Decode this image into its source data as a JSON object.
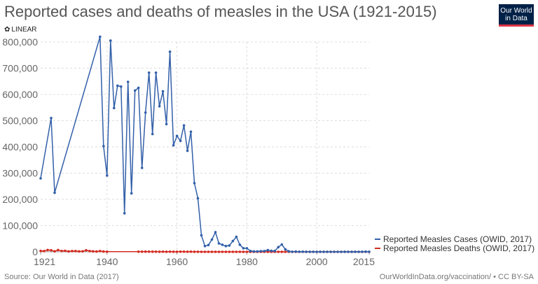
{
  "header": {
    "title": "Reported cases and deaths of measles in the USA (1921-2015)",
    "logo_line1": "Our World",
    "logo_line2": "in Data",
    "scale_label": "LINEAR"
  },
  "footer": {
    "source": "Source: Our World in Data (2017)",
    "link": "OurWorldInData.org/vaccination/ • CC BY-SA"
  },
  "colors": {
    "cases": "#3360a9",
    "deaths": "#d42b21",
    "grid": "#dddddd",
    "axis_text": "#666666"
  },
  "chart_data": {
    "type": "line",
    "title": "Reported cases and deaths of measles in the USA (1921-2015)",
    "xlabel": "",
    "ylabel": "",
    "xlim": [
      1921,
      2015
    ],
    "ylim": [
      0,
      800000
    ],
    "x_ticks": [
      "1921",
      "1940",
      "1960",
      "1980",
      "2000",
      "2015"
    ],
    "y_ticks": [
      "0",
      "100,000",
      "200,000",
      "300,000",
      "400,000",
      "500,000",
      "600,000",
      "700,000",
      "800,000"
    ],
    "grid": true,
    "legend_position": "right",
    "series": [
      {
        "name": "Reported Measles Cases (OWID, 2017)",
        "color": "#3360a9",
        "points": [
          [
            1921,
            280000
          ],
          [
            1924,
            510000
          ],
          [
            1925,
            225000
          ],
          [
            1938,
            820000
          ],
          [
            1939,
            403000
          ],
          [
            1940,
            291000
          ],
          [
            1941,
            805000
          ],
          [
            1942,
            548000
          ],
          [
            1943,
            633000
          ],
          [
            1944,
            630000
          ],
          [
            1945,
            147000
          ],
          [
            1946,
            648000
          ],
          [
            1947,
            223000
          ],
          [
            1948,
            615000
          ],
          [
            1949,
            625000
          ],
          [
            1950,
            320000
          ],
          [
            1951,
            531000
          ],
          [
            1952,
            683000
          ],
          [
            1953,
            449000
          ],
          [
            1954,
            683000
          ],
          [
            1955,
            555000
          ],
          [
            1956,
            612000
          ],
          [
            1957,
            487000
          ],
          [
            1958,
            763000
          ],
          [
            1959,
            406000
          ],
          [
            1960,
            442000
          ],
          [
            1961,
            423000
          ],
          [
            1962,
            482000
          ],
          [
            1963,
            385000
          ],
          [
            1964,
            458000
          ],
          [
            1965,
            262000
          ],
          [
            1966,
            204000
          ],
          [
            1967,
            63000
          ],
          [
            1968,
            22000
          ],
          [
            1969,
            26000
          ],
          [
            1970,
            47000
          ],
          [
            1971,
            75000
          ],
          [
            1972,
            32000
          ],
          [
            1973,
            27000
          ],
          [
            1974,
            22000
          ],
          [
            1975,
            24000
          ],
          [
            1976,
            41000
          ],
          [
            1977,
            57000
          ],
          [
            1978,
            27000
          ],
          [
            1979,
            13600
          ],
          [
            1980,
            13500
          ],
          [
            1981,
            3100
          ],
          [
            1982,
            1700
          ],
          [
            1983,
            1500
          ],
          [
            1984,
            2600
          ],
          [
            1985,
            2800
          ],
          [
            1986,
            6300
          ],
          [
            1987,
            3700
          ],
          [
            1988,
            3400
          ],
          [
            1989,
            18000
          ],
          [
            1990,
            28000
          ],
          [
            1991,
            9600
          ],
          [
            1992,
            2200
          ],
          [
            1993,
            300
          ],
          [
            1994,
            960
          ],
          [
            1995,
            310
          ],
          [
            1996,
            510
          ],
          [
            1997,
            140
          ],
          [
            1998,
            100
          ],
          [
            1999,
            100
          ],
          [
            2000,
            86
          ],
          [
            2001,
            116
          ],
          [
            2002,
            44
          ],
          [
            2003,
            56
          ],
          [
            2004,
            37
          ],
          [
            2005,
            66
          ],
          [
            2006,
            55
          ],
          [
            2007,
            43
          ],
          [
            2008,
            140
          ],
          [
            2009,
            71
          ],
          [
            2010,
            63
          ],
          [
            2011,
            220
          ],
          [
            2012,
            55
          ],
          [
            2013,
            187
          ],
          [
            2014,
            667
          ],
          [
            2015,
            188
          ]
        ]
      },
      {
        "name": "Reported Measles Deaths (OWID, 2017)",
        "color": "#d42b21",
        "points": [
          [
            1921,
            3500
          ],
          [
            1922,
            3000
          ],
          [
            1923,
            7000
          ],
          [
            1924,
            6000
          ],
          [
            1925,
            2000
          ],
          [
            1926,
            7000
          ],
          [
            1927,
            3200
          ],
          [
            1928,
            4000
          ],
          [
            1929,
            1600
          ],
          [
            1930,
            3000
          ],
          [
            1931,
            2800
          ],
          [
            1932,
            1500
          ],
          [
            1933,
            2000
          ],
          [
            1934,
            6000
          ],
          [
            1935,
            3000
          ],
          [
            1936,
            1800
          ],
          [
            1937,
            1100
          ],
          [
            1938,
            3000
          ],
          [
            1939,
            1100
          ],
          [
            1940,
            600
          ],
          [
            1949,
            500
          ],
          [
            1950,
            470
          ],
          [
            1951,
            680
          ],
          [
            1952,
            620
          ],
          [
            1953,
            460
          ],
          [
            1954,
            520
          ],
          [
            1955,
            345
          ],
          [
            1956,
            530
          ],
          [
            1957,
            390
          ],
          [
            1958,
            552
          ],
          [
            1959,
            385
          ],
          [
            1960,
            380
          ],
          [
            1961,
            434
          ],
          [
            1962,
            408
          ],
          [
            1963,
            364
          ],
          [
            1964,
            421
          ],
          [
            1965,
            276
          ],
          [
            1966,
            261
          ],
          [
            1967,
            81
          ],
          [
            1968,
            24
          ],
          [
            1969,
            41
          ],
          [
            1970,
            89
          ],
          [
            1971,
            90
          ],
          [
            1972,
            24
          ],
          [
            1973,
            23
          ],
          [
            1974,
            20
          ],
          [
            1975,
            20
          ],
          [
            1976,
            12
          ],
          [
            1977,
            15
          ],
          [
            1978,
            11
          ],
          [
            1979,
            6
          ],
          [
            1980,
            11
          ],
          [
            1981,
            2
          ],
          [
            1982,
            2
          ],
          [
            1983,
            4
          ],
          [
            1984,
            1
          ],
          [
            1985,
            4
          ],
          [
            1986,
            2
          ],
          [
            1987,
            2
          ],
          [
            1988,
            3
          ],
          [
            1989,
            41
          ],
          [
            1990,
            64
          ],
          [
            1991,
            27
          ],
          [
            1992,
            4
          ],
          [
            1993,
            0
          ],
          [
            1994,
            0
          ],
          [
            1995,
            2
          ],
          [
            1996,
            1
          ],
          [
            1997,
            2
          ],
          [
            1998,
            0
          ],
          [
            1999,
            0
          ],
          [
            2000,
            0
          ],
          [
            2001,
            1
          ],
          [
            2002,
            0
          ],
          [
            2003,
            1
          ],
          [
            2004,
            0
          ],
          [
            2005,
            1
          ],
          [
            2006,
            0
          ],
          [
            2007,
            0
          ],
          [
            2008,
            0
          ],
          [
            2009,
            2
          ],
          [
            2010,
            2
          ],
          [
            2011,
            0
          ],
          [
            2012,
            2
          ],
          [
            2013,
            0
          ],
          [
            2014,
            0
          ],
          [
            2015,
            0
          ]
        ]
      }
    ]
  }
}
